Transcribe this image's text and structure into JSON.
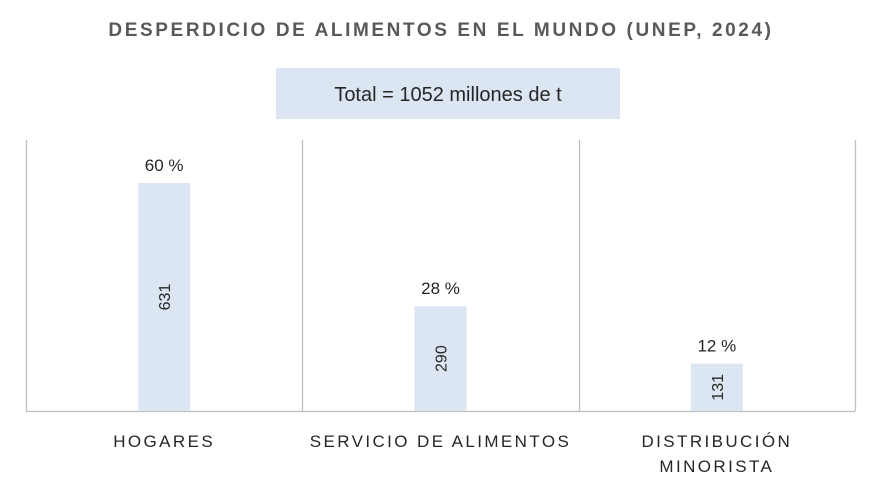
{
  "chart_data": {
    "type": "bar",
    "title": "DESPERDICIO DE ALIMENTOS EN EL MUNDO (UNEP, 2024)",
    "annotation": "Total = 1052 millones de t",
    "categories": [
      [
        "HOGARES"
      ],
      [
        "SERVICIO DE ALIMENTOS"
      ],
      [
        "DISTRIBUCIÓN",
        "MINORISTA"
      ]
    ],
    "values": [
      631,
      290,
      131
    ],
    "percent_labels": [
      "60 %",
      "28 %",
      "12 %"
    ],
    "ylim": [
      0,
      750
    ],
    "grid": false,
    "colors": {
      "bar": "#dce6f2",
      "box": "#dce6f2",
      "axis": "#bfbfbf",
      "text": "#262626",
      "title": "#595959"
    }
  }
}
